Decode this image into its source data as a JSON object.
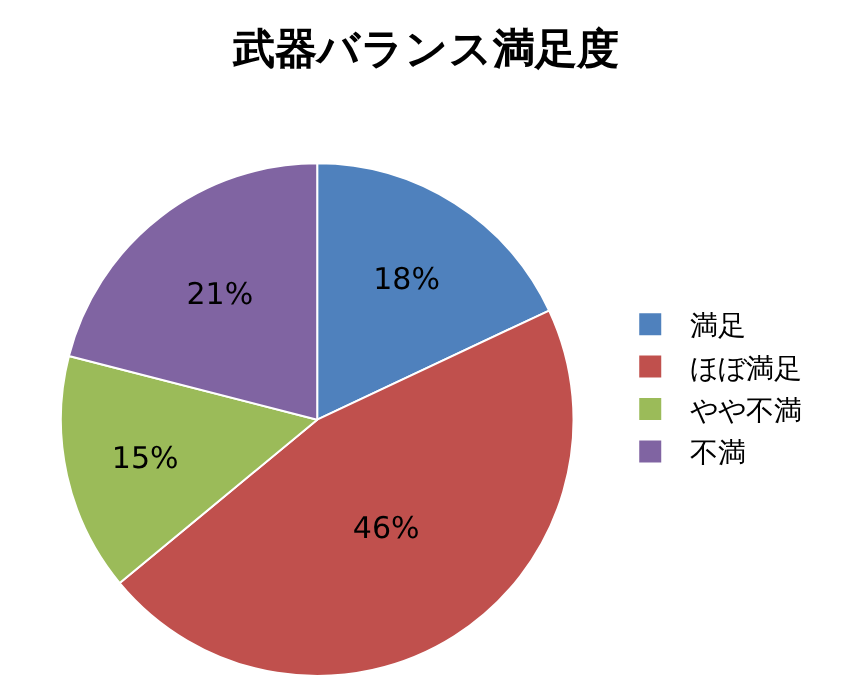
{
  "chart_data": {
    "type": "pie",
    "title": "武器バランス満足度",
    "categories": [
      "満足",
      "ほぼ満足",
      "やや不満",
      "不満"
    ],
    "values": [
      18,
      46,
      15,
      21
    ],
    "value_labels": [
      "18%",
      "46%",
      "15%",
      "21%"
    ],
    "colors": [
      "#4f81bd",
      "#c0504d",
      "#9bbb59",
      "#8064a2"
    ],
    "legend": "right"
  }
}
